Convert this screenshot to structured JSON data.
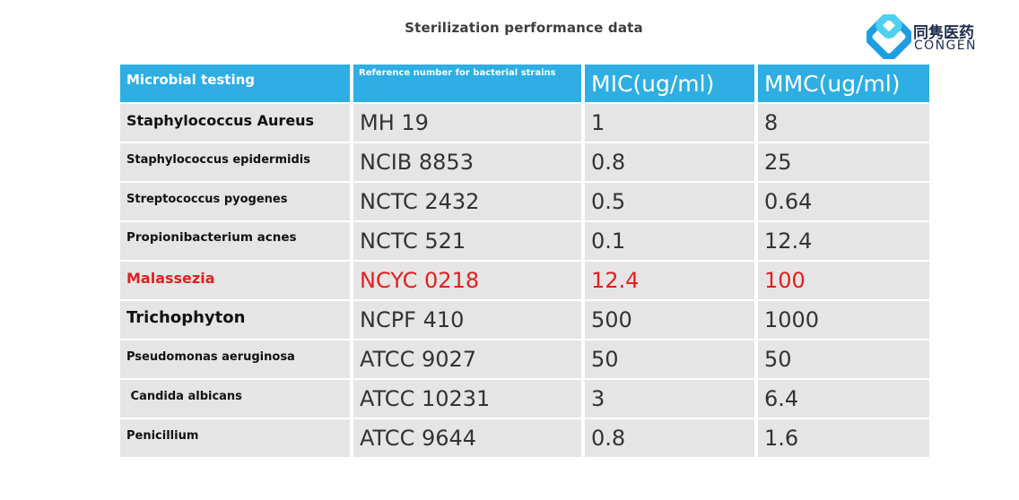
{
  "title": "Sterilization performance data",
  "logo": {
    "cn": "同隽医药",
    "en": "CONGEN"
  },
  "colors": {
    "header_bg": "#2eaee2",
    "cell_bg": "#e5e5e5",
    "highlight": "#e02020"
  },
  "table": {
    "headers": [
      "Microbial testing",
      "Reference number for bacterial strains",
      "MIC(ug/ml)",
      "MMC(ug/ml)"
    ],
    "rows": [
      [
        "Staphylococcus Aureus",
        "MH 19",
        "1",
        "8"
      ],
      [
        "Staphylococcus epidermidis",
        "NCIB 8853",
        "0.8",
        "25"
      ],
      [
        "Streptococcus pyogenes",
        "NCTC 2432",
        "0.5",
        "0.64"
      ],
      [
        "Propionibacterium acnes",
        "NCTC 521",
        "0.1",
        "12.4"
      ],
      [
        "Malassezia",
        "NCYC 0218",
        "12.4",
        "100"
      ],
      [
        "Trichophyton",
        "NCPF 410",
        "500",
        "1000"
      ],
      [
        "Pseudomonas aeruginosa",
        "ATCC 9027",
        "50",
        "50"
      ],
      [
        " Candida albicans",
        "ATCC 10231",
        "3",
        "6.4"
      ],
      [
        "Penicillium",
        "ATCC 9644",
        "0.8",
        "1.6"
      ]
    ]
  }
}
